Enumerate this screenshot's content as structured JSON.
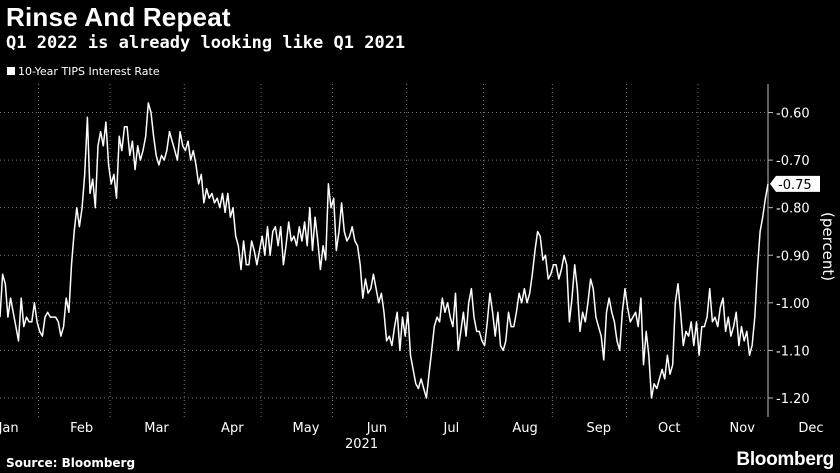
{
  "title": "Rinse And Repeat",
  "subtitle": "Q1 2022 is already looking like Q1 2021",
  "source": "Source: Bloomberg",
  "brand": "Bloomberg",
  "chart_data": {
    "type": "line",
    "series": [
      {
        "name": "10-Year TIPS Interest Rate",
        "color": "#ffffff",
        "values": [
          -1.03,
          -0.94,
          -0.96,
          -1.03,
          -0.99,
          -1.02,
          -1.05,
          -1.08,
          -0.99,
          -1.05,
          -1.03,
          -1.04,
          -1.04,
          -1.0,
          -1.04,
          -1.06,
          -1.07,
          -1.03,
          -1.02,
          -1.03,
          -1.03,
          -1.03,
          -1.04,
          -1.07,
          -1.05,
          -0.99,
          -1.02,
          -0.92,
          -0.85,
          -0.8,
          -0.84,
          -0.8,
          -0.73,
          -0.61,
          -0.77,
          -0.74,
          -0.8,
          -0.67,
          -0.64,
          -0.67,
          -0.62,
          -0.71,
          -0.75,
          -0.73,
          -0.78,
          -0.65,
          -0.68,
          -0.63,
          -0.63,
          -0.69,
          -0.66,
          -0.72,
          -0.67,
          -0.7,
          -0.68,
          -0.65,
          -0.58,
          -0.6,
          -0.65,
          -0.69,
          -0.71,
          -0.69,
          -0.7,
          -0.68,
          -0.64,
          -0.66,
          -0.68,
          -0.7,
          -0.64,
          -0.67,
          -0.68,
          -0.66,
          -0.7,
          -0.68,
          -0.71,
          -0.75,
          -0.73,
          -0.79,
          -0.76,
          -0.78,
          -0.77,
          -0.79,
          -0.78,
          -0.8,
          -0.77,
          -0.81,
          -0.77,
          -0.82,
          -0.8,
          -0.86,
          -0.88,
          -0.93,
          -0.87,
          -0.92,
          -0.92,
          -0.87,
          -0.89,
          -0.92,
          -0.89,
          -0.86,
          -0.9,
          -0.84,
          -0.9,
          -0.85,
          -0.84,
          -0.88,
          -0.84,
          -0.92,
          -0.88,
          -0.83,
          -0.87,
          -0.86,
          -0.88,
          -0.84,
          -0.87,
          -0.83,
          -0.88,
          -0.8,
          -0.89,
          -0.82,
          -0.87,
          -0.93,
          -0.88,
          -0.91,
          -0.75,
          -0.8,
          -0.78,
          -0.89,
          -0.85,
          -0.79,
          -0.85,
          -0.87,
          -0.86,
          -0.84,
          -0.87,
          -0.88,
          -0.92,
          -0.99,
          -0.95,
          -0.98,
          -0.97,
          -0.94,
          -0.97,
          -1.0,
          -0.98,
          -1.02,
          -1.08,
          -1.07,
          -1.09,
          -1.05,
          -1.02,
          -1.1,
          -1.03,
          -1.07,
          -1.02,
          -1.11,
          -1.14,
          -1.17,
          -1.18,
          -1.16,
          -1.18,
          -1.2,
          -1.15,
          -1.1,
          -1.05,
          -1.03,
          -1.04,
          -0.99,
          -1.02,
          -1.0,
          -1.03,
          -1.05,
          -0.98,
          -1.1,
          -1.06,
          -1.02,
          -1.07,
          -1.0,
          -0.97,
          -1.03,
          -1.06,
          -1.06,
          -1.08,
          -1.09,
          -1.04,
          -0.98,
          -1.02,
          -1.07,
          -1.02,
          -1.09,
          -1.1,
          -1.08,
          -1.02,
          -1.05,
          -1.05,
          -1.02,
          -0.98,
          -1.0,
          -0.97,
          -1.0,
          -0.98,
          -0.94,
          -0.89,
          -0.85,
          -0.86,
          -0.91,
          -0.9,
          -0.95,
          -0.94,
          -0.92,
          -0.92,
          -0.95,
          -0.93,
          -0.9,
          -0.92,
          -1.04,
          -0.99,
          -0.92,
          -0.97,
          -1.06,
          -1.02,
          -1.04,
          -1.0,
          -0.95,
          -0.97,
          -1.03,
          -1.05,
          -1.07,
          -1.12,
          -1.02,
          -0.99,
          -1.02,
          -1.04,
          -1.08,
          -1.1,
          -1.02,
          -0.97,
          -1.01,
          -1.04,
          -1.03,
          -1.02,
          -1.05,
          -0.99,
          -1.13,
          -1.06,
          -1.11,
          -1.2,
          -1.17,
          -1.18,
          -1.16,
          -1.14,
          -1.16,
          -1.11,
          -1.15,
          -1.13,
          -1.0,
          -0.96,
          -1.02,
          -1.09,
          -1.06,
          -1.07,
          -1.04,
          -1.09,
          -1.04,
          -1.11,
          -1.05,
          -1.05,
          -1.03,
          -0.97,
          -1.04,
          -1.03,
          -1.05,
          -1.01,
          -0.99,
          -1.06,
          -1.03,
          -1.07,
          -1.05,
          -1.02,
          -1.09,
          -1.05,
          -1.08,
          -1.06,
          -1.11,
          -1.09,
          -1.03,
          -0.93,
          -0.85,
          -0.82,
          -0.78,
          -0.75
        ]
      }
    ],
    "x_ticks": [
      "Jan",
      "Feb",
      "Mar",
      "Apr",
      "May",
      "Jun",
      "Jul",
      "Aug",
      "Sep",
      "Oct",
      "Nov",
      "Dec"
    ],
    "x_tick_indices": [
      4,
      31,
      59,
      88,
      115,
      143,
      172,
      198,
      226,
      253,
      280,
      306
    ],
    "x_year_label": "2021",
    "ylabel": "(percent)",
    "y_ticks": [
      -0.6,
      -0.7,
      -0.8,
      -0.9,
      -1.0,
      -1.1,
      -1.2
    ],
    "y_tick_labels": [
      "-0.60",
      "-0.70",
      "-0.80",
      "-0.90",
      "-1.00",
      "-1.10",
      "-1.20"
    ],
    "ylim": [
      -1.24,
      -0.54
    ],
    "y_axis_side": "right",
    "grid": true,
    "last_value_label": "-0.75"
  }
}
